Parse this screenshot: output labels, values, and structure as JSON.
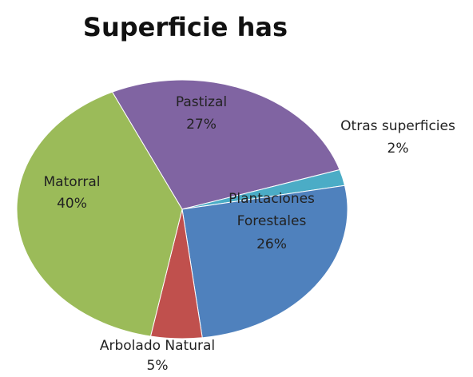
{
  "chart_data": {
    "type": "pie",
    "title": "Superficie has",
    "categories": [
      "Pastizal",
      "Otras superficies",
      "Plantaciones Forestales",
      "Arbolado Natural",
      "Matorral"
    ],
    "values": [
      27,
      2,
      26,
      5,
      40
    ],
    "value_labels": [
      "27%",
      "2%",
      "26%",
      "5%",
      "40%"
    ],
    "colors": [
      "#8064a2",
      "#4bacc6",
      "#4f81bd",
      "#c0504d",
      "#9bbb59"
    ]
  }
}
